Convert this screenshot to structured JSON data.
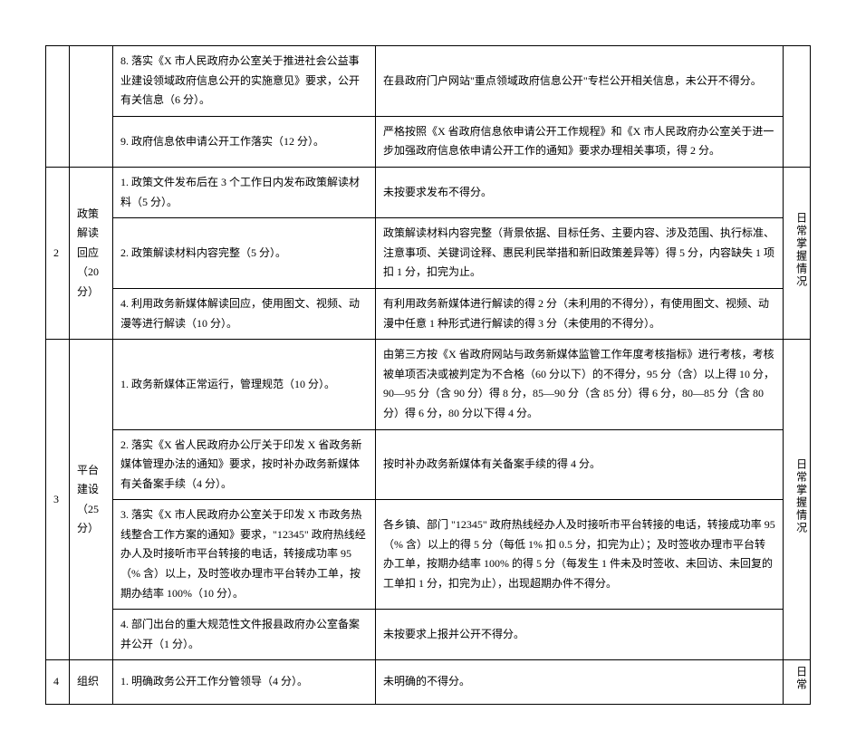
{
  "rows": {
    "r1": {
      "item": "8. 落实《X 市人民政府办公室关于推进社会公益事业建设领域政府信息公开的实施意见》要求，公开有关信息（6 分）。",
      "std": "在县政府门户网站\"重点领域政府信息公开\"专栏公开相关信息，未公开不得分。"
    },
    "r2": {
      "item": "9. 政府信息依申请公开工作落实（12 分）。",
      "std": "严格按照《X 省政府信息依申请公开工作规程》和《X 市人民政府办公室关于进一步加强政府信息依申请公开工作的通知》要求办理相关事项，得 2 分。"
    },
    "r3": {
      "idx": "2",
      "cat": "政策解读回应（20 分）",
      "item": "1. 政策文件发布后在 3 个工作日内发布政策解读材料（5 分）。",
      "std": "未按要求发布不得分。",
      "note": "日常掌握情况"
    },
    "r4": {
      "item": "2. 政策解读材料内容完整（5 分）。",
      "std": "政策解读材料内容完整（背景依据、目标任务、主要内容、涉及范围、执行标准、注意事项、关键词诠释、惠民利民举措和新旧政策差异等）得 5 分，内容缺失 1 项扣 1 分，扣完为止。"
    },
    "r5": {
      "item": "4. 利用政务新媒体解读回应，使用图文、视频、动漫等进行解读（10 分）。",
      "std": "有利用政务新媒体进行解读的得 2 分（未利用的不得分），有使用图文、视频、动漫中任意 1 种形式进行解读的得 3 分（未使用的不得分）。"
    },
    "r6": {
      "idx": "3",
      "cat": "平台建设（25 分）",
      "item": "1. 政务新媒体正常运行，管理规范（10 分）。",
      "std": "由第三方按《X 省政府网站与政务新媒体监管工作年度考核指标》进行考核，考核被单项否决或被判定为不合格（60 分以下）的不得分，95 分（含）以上得 10 分，90—95 分（含 90 分）得 8 分，85—90 分（含 85 分）得 6 分，80—85 分（含 80 分）得 6 分，80 分以下得 4 分。",
      "note": "日常掌握情况"
    },
    "r7": {
      "item": "2. 落实《X 省人民政府办公厅关于印发 X 省政务新媒体管理办法的通知》要求，按时补办政务新媒体有关备案手续（4 分）。",
      "std": "按时补办政务新媒体有关备案手续的得 4 分。"
    },
    "r8": {
      "item": "3. 落实《X 市人民政府办公室关于印发 X 市政务热线整合工作方案的通知》要求，\"12345\" 政府热线经办人及时接听市平台转接的电话，转接成功率 95（% 含）以上，及时签收办理市平台转办工单，按期办结率 100%（10 分）。",
      "std": "各乡镇、部门 \"12345\" 政府热线经办人及时接听市平台转接的电话，转接成功率 95（% 含）以上的得 5 分（每低 1% 扣 0.5 分，扣完为止）；及时签收办理市平台转办工单，按期办结率 100% 的得 5 分（每发生 1 件未及时签收、未回访、未回复的工单扣 1 分，扣完为止），出现超期办件不得分。"
    },
    "r9": {
      "item": "4. 部门出台的重大规范性文件报县政府办公室备案并公开（1 分）。",
      "std": "未按要求上报并公开不得分。"
    },
    "r10": {
      "idx": "4",
      "cat": "组织",
      "item": "1. 明确政务公开工作分管领导（4 分）。",
      "std": "未明确的不得分。",
      "note": "日常"
    }
  }
}
